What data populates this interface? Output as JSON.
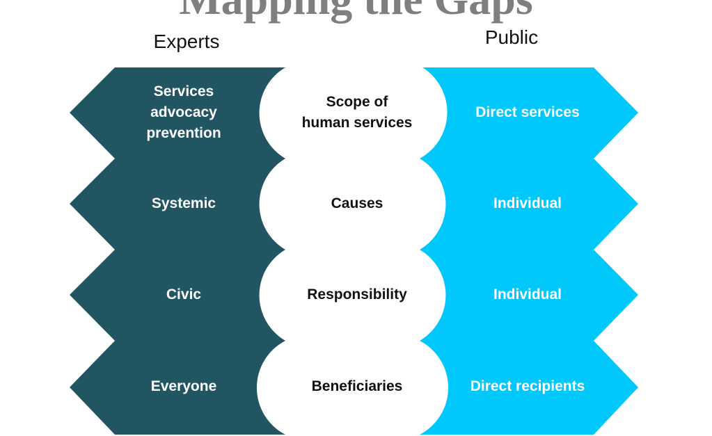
{
  "title": "Mapping the Gaps",
  "headers": {
    "experts": "Experts",
    "public": "Public"
  },
  "colors": {
    "experts_fill": "#215562",
    "public_fill": "#00c8fa",
    "title_color": "#7f7f7f"
  },
  "rows": [
    {
      "experts": "Services\nadvocacy\nprevention",
      "topic": "Scope of\nhuman services",
      "public": "Direct services"
    },
    {
      "experts": "Systemic",
      "topic": "Causes",
      "public": "Individual"
    },
    {
      "experts": "Civic",
      "topic": "Responsibility",
      "public": "Individual"
    },
    {
      "experts": "Everyone",
      "topic": "Beneficiaries",
      "public": "Direct recipients"
    }
  ]
}
